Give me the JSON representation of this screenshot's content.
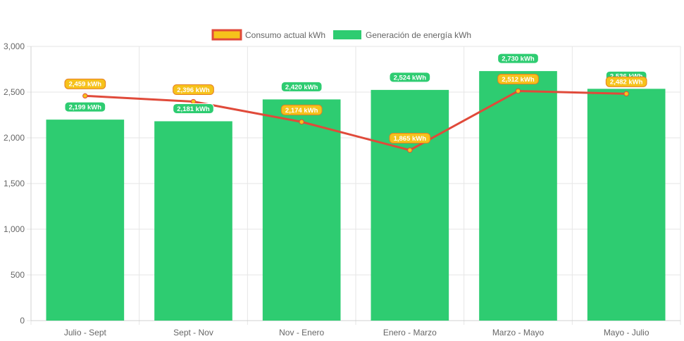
{
  "chart_data": {
    "type": "bar",
    "categories": [
      "Julio - Sept",
      "Sept - Nov",
      "Nov - Enero",
      "Enero - Marzo",
      "Marzo - Mayo",
      "Mayo - Julio"
    ],
    "series": [
      {
        "name": "Consumo actual kWh",
        "kind": "line",
        "values": [
          2459,
          2396,
          2174,
          1865,
          2512,
          2482
        ],
        "labels": [
          "2,459 kWh",
          "2,396 kWh",
          "2,174 kWh",
          "1,865 kWh",
          "2,512 kWh",
          "2,482 kWh"
        ],
        "color": "#e04a3a",
        "point_color": "#f6c21b"
      },
      {
        "name": "Generación de energía kWh",
        "kind": "bar",
        "values": [
          2199,
          2181,
          2420,
          2524,
          2730,
          2536
        ],
        "labels": [
          "2,199 kWh",
          "2,181 kWh",
          "2,420 kWh",
          "2,524 kWh",
          "2,730 kWh",
          "2,536 kWh"
        ],
        "color": "#2ecc71"
      }
    ],
    "ylim": [
      0,
      3000
    ],
    "yticks": [
      0,
      500,
      1000,
      1500,
      2000,
      2500,
      3000
    ],
    "ytick_labels": [
      "0",
      "500",
      "1,000",
      "1,500",
      "2,000",
      "2,500",
      "3,000"
    ],
    "grid": true,
    "legend_position": "top",
    "title": "",
    "xlabel": "",
    "ylabel": ""
  }
}
